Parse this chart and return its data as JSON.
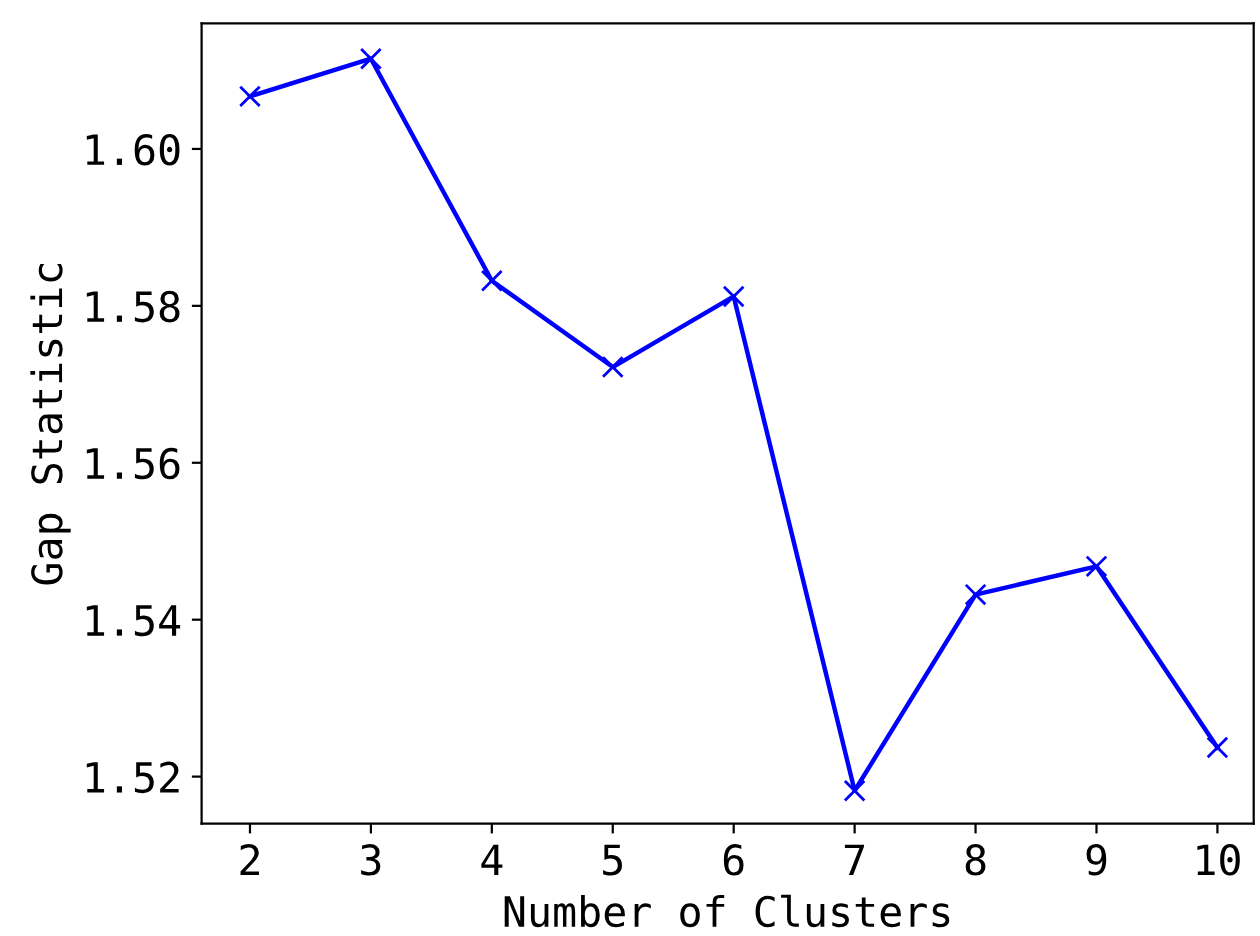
{
  "chart_data": {
    "type": "line",
    "xlabel": "Number of Clusters",
    "ylabel": "Gap Statistic",
    "x": [
      2,
      3,
      4,
      5,
      6,
      7,
      8,
      9,
      10
    ],
    "series": [
      {
        "color": "#0000ff",
        "values": [
          1.6067,
          1.6115,
          1.5832,
          1.5722,
          1.5812,
          1.5182,
          1.5432,
          1.5468,
          1.5237
        ]
      }
    ],
    "xlim": [
      1.6,
      10.3
    ],
    "ylim": [
      1.514,
      1.616
    ],
    "xticks": [
      2,
      3,
      4,
      5,
      6,
      7,
      8,
      9,
      10
    ],
    "yticks": [
      {
        "value": 1.52,
        "label": "1.52"
      },
      {
        "value": 1.54,
        "label": "1.54"
      },
      {
        "value": 1.56,
        "label": "1.56"
      },
      {
        "value": 1.58,
        "label": "1.58"
      },
      {
        "value": 1.6,
        "label": "1.60"
      }
    ],
    "marker": "cross",
    "line_style": "solid",
    "grid": false,
    "legend": false
  }
}
